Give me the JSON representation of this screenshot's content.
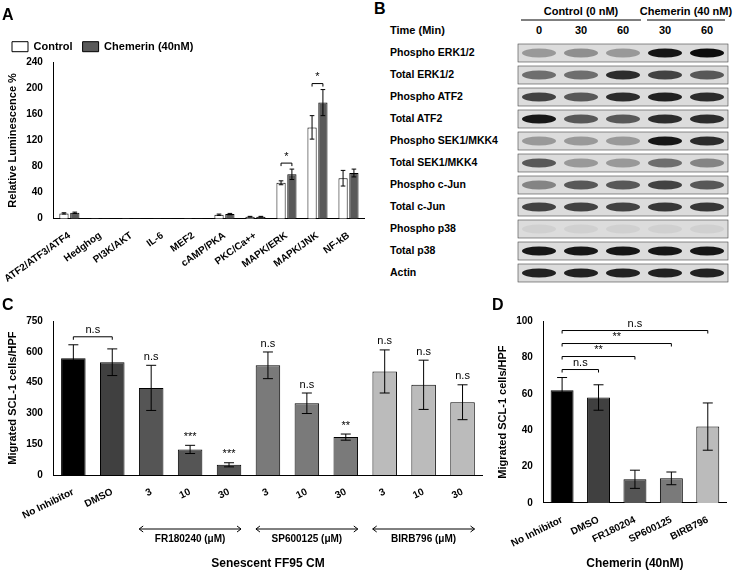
{
  "chart_data": [
    {
      "panel": "A",
      "type": "bar",
      "categories": [
        "ATF2/ATF3/ATF4",
        "Hedghog",
        "PI3K/AKT",
        "IL-6",
        "MEF2",
        "cAMP/PKA",
        "PKC/Ca++",
        "MAPK/ERK",
        "MAPK/JNK",
        "NF-kB"
      ],
      "series": [
        {
          "name": "Control",
          "color": "#ffffff",
          "values": [
            8,
            0.5,
            0.5,
            0.3,
            0.5,
            6,
            3,
            55,
            140,
            62
          ],
          "errors": [
            1,
            0,
            0,
            0,
            0,
            1,
            0.5,
            3,
            18,
            12
          ]
        },
        {
          "name": "Chemerin (40nM)",
          "color": "#595959",
          "values": [
            9,
            0.5,
            0.5,
            0.3,
            0.5,
            7,
            3,
            68,
            178,
            70
          ],
          "errors": [
            1,
            0,
            0,
            0,
            0,
            1,
            0.5,
            8,
            20,
            6
          ]
        }
      ],
      "y_label": "Relative Luminescence %",
      "ylim": [
        0,
        240
      ],
      "yticks": [
        0,
        40,
        80,
        120,
        160,
        200,
        240
      ],
      "grid": false,
      "legend": "top-left",
      "annotations": [
        {
          "text": "*",
          "index": 7
        },
        {
          "text": "*",
          "index": 8
        }
      ]
    },
    {
      "panel": "C",
      "type": "bar",
      "categories": [
        "No Inhibitor",
        "DMSO",
        "3",
        "10",
        "30",
        "3",
        "10",
        "30",
        "3",
        "10",
        "30"
      ],
      "values": [
        570,
        550,
        425,
        125,
        50,
        535,
        350,
        185,
        505,
        440,
        355
      ],
      "errors": [
        65,
        65,
        110,
        20,
        10,
        65,
        50,
        15,
        105,
        120,
        85
      ],
      "colors": [
        "#000000",
        "#404040",
        "#555555",
        "#555555",
        "#555555",
        "#7a7a7a",
        "#7a7a7a",
        "#7a7a7a",
        "#bbbbbb",
        "#bbbbbb",
        "#bbbbbb"
      ],
      "groups": [
        {
          "label": "FR180240 (μM)",
          "start": 2,
          "end": 4
        },
        {
          "label": "SP600125 (μM)",
          "start": 5,
          "end": 7
        },
        {
          "label": "BIRB796 (μM)",
          "start": 8,
          "end": 10
        }
      ],
      "x_label": "Senescent FF95 CM",
      "y_label": "Migrated SCL-1 cells/HPF",
      "ylim": [
        0,
        750
      ],
      "yticks": [
        0,
        150,
        300,
        450,
        600,
        750
      ],
      "grid": false,
      "annotations": [
        {
          "text": "n.s",
          "from": 0,
          "to": 1
        },
        {
          "text": "n.s",
          "index": 2
        },
        {
          "text": "***",
          "index": 3
        },
        {
          "text": "***",
          "index": 4
        },
        {
          "text": "n.s",
          "index": 5
        },
        {
          "text": "n.s",
          "index": 6
        },
        {
          "text": "**",
          "index": 7
        },
        {
          "text": "n.s",
          "index": 8
        },
        {
          "text": "n.s",
          "index": 9
        },
        {
          "text": "n.s",
          "index": 10
        }
      ]
    },
    {
      "panel": "D",
      "type": "bar",
      "categories": [
        "No Inhibitor",
        "DMSO",
        "FR180204",
        "SP600125",
        "BIRB796"
      ],
      "values": [
        62,
        58,
        13,
        13.5,
        42
      ],
      "errors": [
        7,
        7,
        5,
        3.5,
        13
      ],
      "colors": [
        "#000000",
        "#404040",
        "#555555",
        "#7a7a7a",
        "#bbbbbb"
      ],
      "x_label": "Chemerin (40nM)",
      "y_label": "Migrated SCL-1 cells/HPF",
      "ylim": [
        0,
        100
      ],
      "yticks": [
        0,
        20,
        40,
        60,
        80,
        100
      ],
      "grid": false,
      "annotations": [
        {
          "text": "n.s",
          "from": 0,
          "to": 1
        },
        {
          "text": "**",
          "from": 0,
          "to": 2
        },
        {
          "text": "**",
          "from": 0,
          "to": 3
        },
        {
          "text": "n.s",
          "from": 0,
          "to": 4
        }
      ]
    }
  ],
  "blot": {
    "panel": "B",
    "time_label": "Time (Min)",
    "groups": [
      {
        "label": "Control (0 nM)",
        "lanes": 3
      },
      {
        "label": "Chemerin (40 nM)",
        "lanes": 2
      }
    ],
    "lanes": [
      "0",
      "30",
      "60",
      "30",
      "60"
    ],
    "rows": [
      {
        "label": "Phospho ERK1/2",
        "intensity": [
          0.3,
          0.35,
          0.3,
          0.9,
          0.95
        ]
      },
      {
        "label": "Total ERK1/2",
        "intensity": [
          0.5,
          0.5,
          0.8,
          0.7,
          0.6
        ]
      },
      {
        "label": "Phospho ATF2",
        "intensity": [
          0.7,
          0.6,
          0.8,
          0.85,
          0.8
        ]
      },
      {
        "label": "Total ATF2",
        "intensity": [
          0.9,
          0.6,
          0.6,
          0.8,
          0.8
        ]
      },
      {
        "label": "Phospho SEK1/MKK4",
        "intensity": [
          0.3,
          0.3,
          0.3,
          0.9,
          0.8
        ]
      },
      {
        "label": "Total SEK1/MKK4",
        "intensity": [
          0.6,
          0.3,
          0.3,
          0.5,
          0.4
        ]
      },
      {
        "label": "Phospho c-Jun",
        "intensity": [
          0.4,
          0.6,
          0.6,
          0.7,
          0.6
        ]
      },
      {
        "label": "Total c-Jun",
        "intensity": [
          0.7,
          0.7,
          0.7,
          0.75,
          0.75
        ]
      },
      {
        "label": "Phospho p38",
        "intensity": [
          0.05,
          0.05,
          0.05,
          0.05,
          0.05
        ]
      },
      {
        "label": "Total p38",
        "intensity": [
          0.9,
          0.9,
          0.9,
          0.9,
          0.9
        ]
      },
      {
        "label": "Actin",
        "intensity": [
          0.85,
          0.85,
          0.85,
          0.85,
          0.85
        ]
      }
    ]
  }
}
